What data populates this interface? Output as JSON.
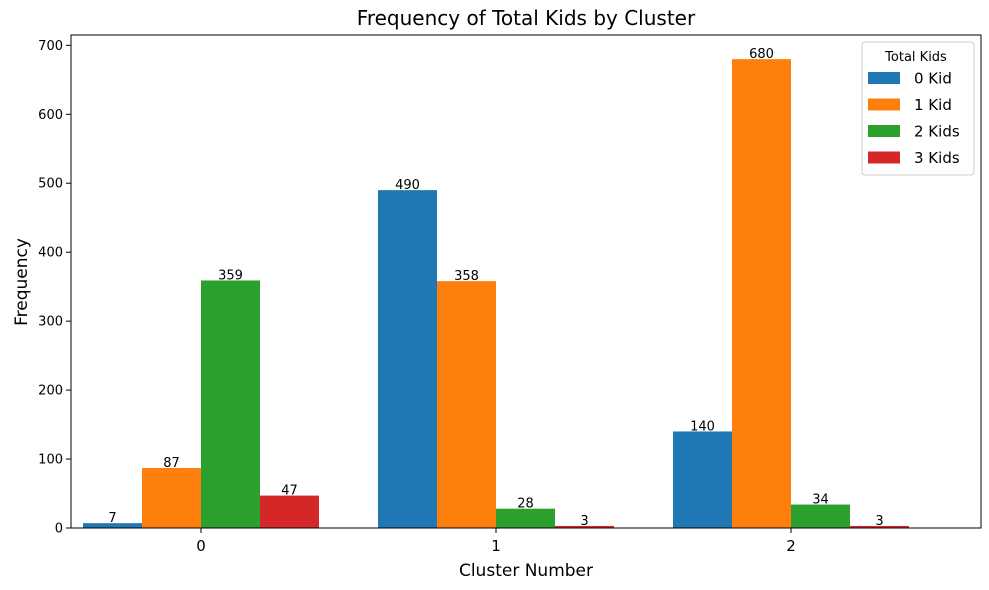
{
  "chart_data": {
    "type": "bar",
    "title": "Frequency of Total Kids by Cluster",
    "xlabel": "Cluster Number",
    "ylabel": "Frequency",
    "categories": [
      "0",
      "1",
      "2"
    ],
    "ylim": [
      0,
      715
    ],
    "yticks": [
      0,
      100,
      200,
      300,
      400,
      500,
      600,
      700
    ],
    "grid": false,
    "legend": {
      "title": "Total Kids",
      "placement": "top-right"
    },
    "series": [
      {
        "name": "0 Kid",
        "color": "#1f77b4",
        "values": [
          7,
          490,
          140
        ]
      },
      {
        "name": "1 Kid",
        "color": "#ff7f0e",
        "values": [
          87,
          358,
          680
        ]
      },
      {
        "name": "2 Kids",
        "color": "#2ca02c",
        "values": [
          359,
          28,
          34
        ]
      },
      {
        "name": "3 Kids",
        "color": "#d62728",
        "values": [
          47,
          3,
          3
        ]
      }
    ]
  }
}
